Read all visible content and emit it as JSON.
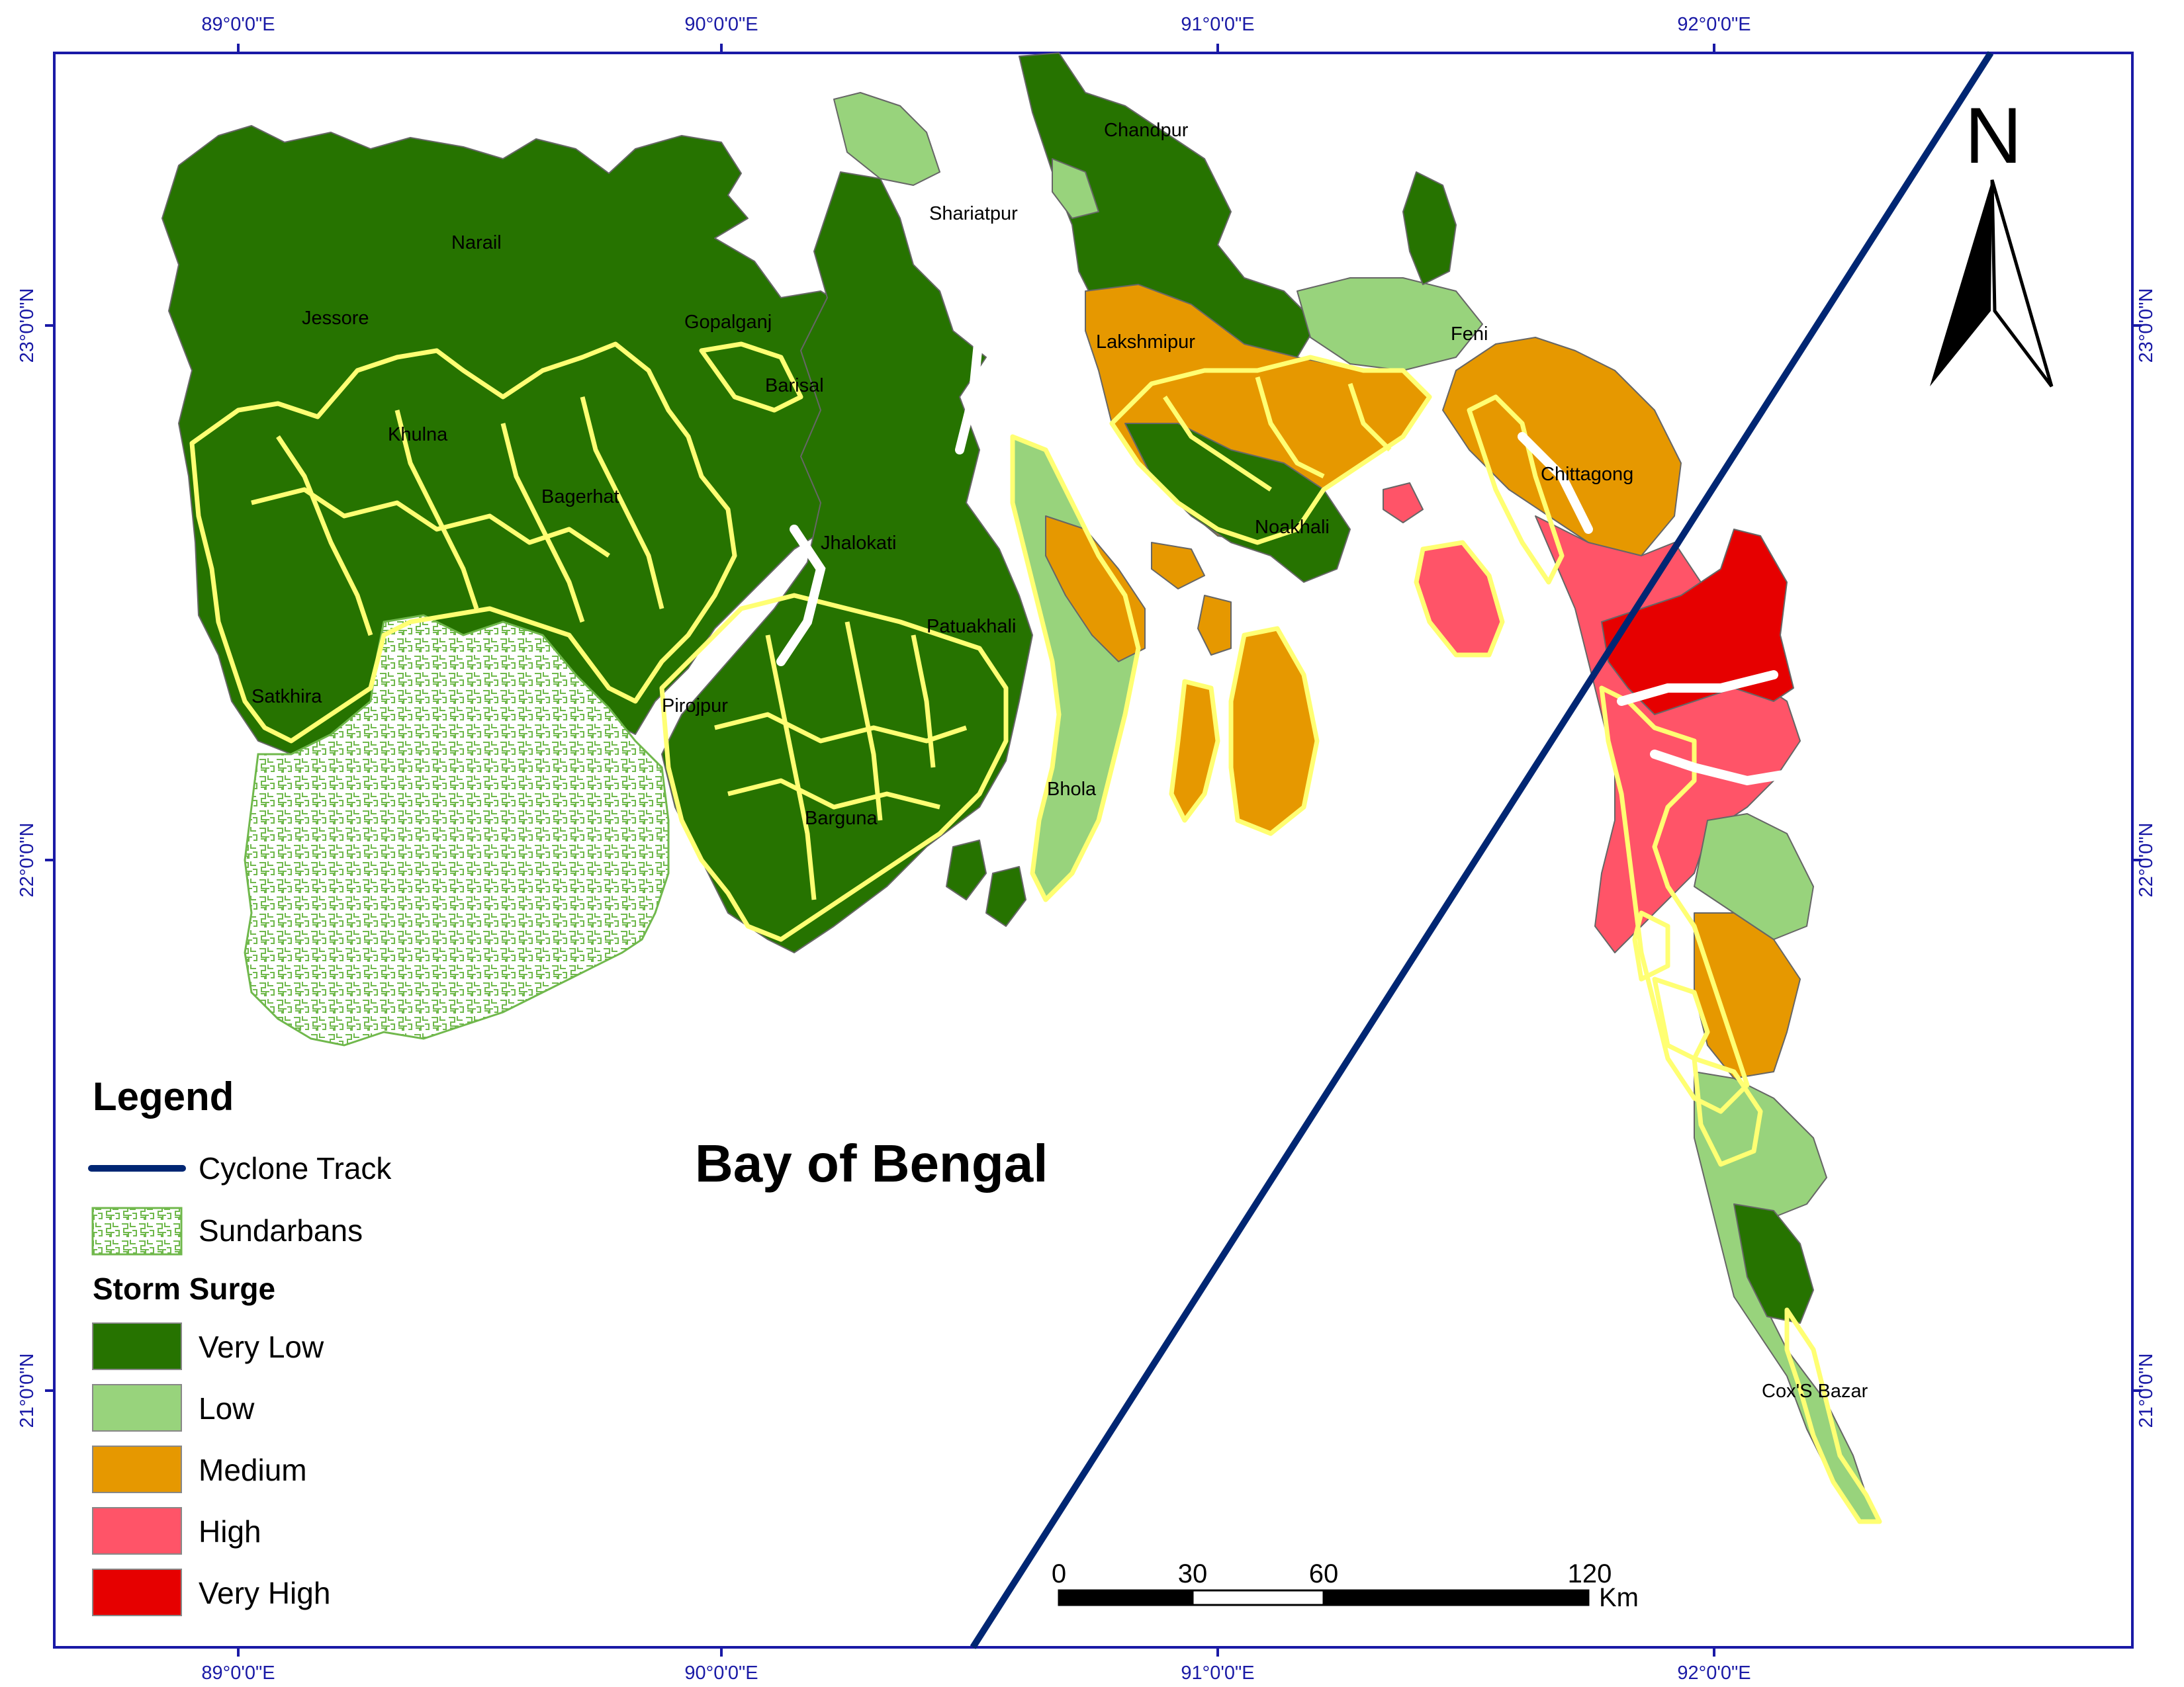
{
  "graticule": {
    "top_lon": [
      "89°0'0\"E",
      "90°0'0\"E",
      "91°0'0\"E",
      "92°0'0\"E"
    ],
    "bottom_lon": [
      "89°0'0\"E",
      "90°0'0\"E",
      "91°0'0\"E",
      "92°0'0\"E"
    ],
    "left_lat": [
      "23°0'0\"N",
      "22°0'0\"N",
      "21°0'0\"N"
    ],
    "right_lat": [
      "23°0'0\"N",
      "22°0'0\"N",
      "21°0'0\"N"
    ]
  },
  "places": {
    "chandpur": "Chandpur",
    "shariatpur": "Shariatpur",
    "narail": "Narail",
    "jessore": "Jessore",
    "gopalganj": "Gopalganj",
    "barisal": "Barisal",
    "khulna": "Khulna",
    "bagerhat": "Bagerhat",
    "jhalokati": "Jhalokati",
    "patuakhali": "Patuakhali",
    "satkhira": "Satkhira",
    "pirojpur": "Pirojpur",
    "barguna": "Barguna",
    "bhola": "Bhola",
    "lakshmipur": "Lakshmipur",
    "feni": "Feni",
    "noakhali": "Noakhali",
    "chittagong": "Chittagong",
    "coxs_bazar": "Cox'S Bazar"
  },
  "sea_label": "Bay of Bengal",
  "north_arrow": "N",
  "legend": {
    "title": "Legend",
    "track_label": "Cyclone Track",
    "sundarbans_label": "Sundarbans",
    "surge_title": "Storm Surge",
    "classes": [
      {
        "label": "Very Low",
        "color": "#267300"
      },
      {
        "label": "Low",
        "color": "#98d37c"
      },
      {
        "label": "Medium",
        "color": "#e69800"
      },
      {
        "label": "High",
        "color": "#ff5468"
      },
      {
        "label": "Very High",
        "color": "#e60000"
      }
    ]
  },
  "scale_bar": {
    "ticks": [
      "0",
      "30",
      "60",
      "120"
    ],
    "unit": "Km"
  },
  "colors": {
    "very_low": "#267300",
    "low": "#98d37c",
    "medium": "#e69800",
    "high": "#ff5468",
    "very_high": "#e60000",
    "embankment": "#ffff73",
    "cyclone_track": "#002673",
    "sundarbans": "#70b84c",
    "frame": "#1a1aa6"
  }
}
